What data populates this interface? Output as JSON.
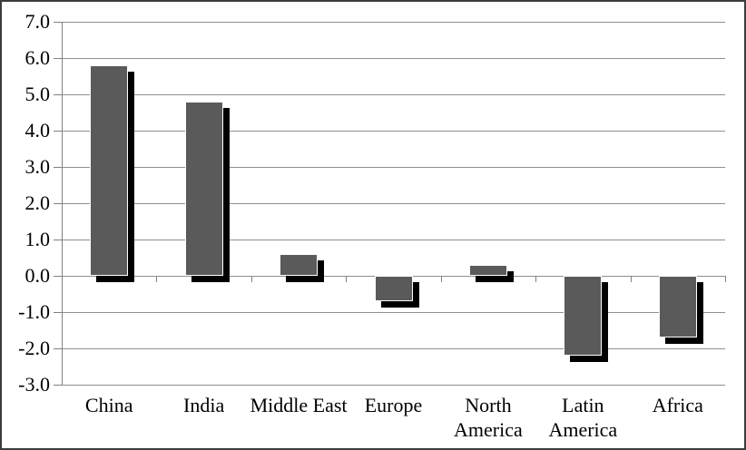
{
  "chart_data": {
    "type": "bar",
    "title": "",
    "xlabel": "",
    "ylabel": "",
    "categories": [
      "China",
      "India",
      "Middle East",
      "Europe",
      "North America",
      "Latin America",
      "Africa"
    ],
    "values": [
      5.8,
      4.8,
      0.6,
      -0.7,
      0.3,
      -2.2,
      -1.7
    ],
    "ylim": [
      -3.0,
      7.0
    ],
    "ytick_step": 1.0,
    "ytick_labels": [
      "7.0",
      "6.0",
      "5.0",
      "4.0",
      "3.0",
      "2.0",
      "1.0",
      "0.0",
      "-1.0",
      "-2.0",
      "-3.0"
    ],
    "grid": true,
    "legend": false,
    "bar_style": "solid-with-offset-shadow",
    "colors": {
      "bar_fill": "#5a5a5a",
      "bar_border": "#ffffff",
      "bar_shadow": "#000000",
      "gridline": "#8f8f8f",
      "axis_line": "#808080",
      "text": "#000000",
      "background": "#ffffff",
      "frame_border": "#3d3d3d"
    }
  }
}
